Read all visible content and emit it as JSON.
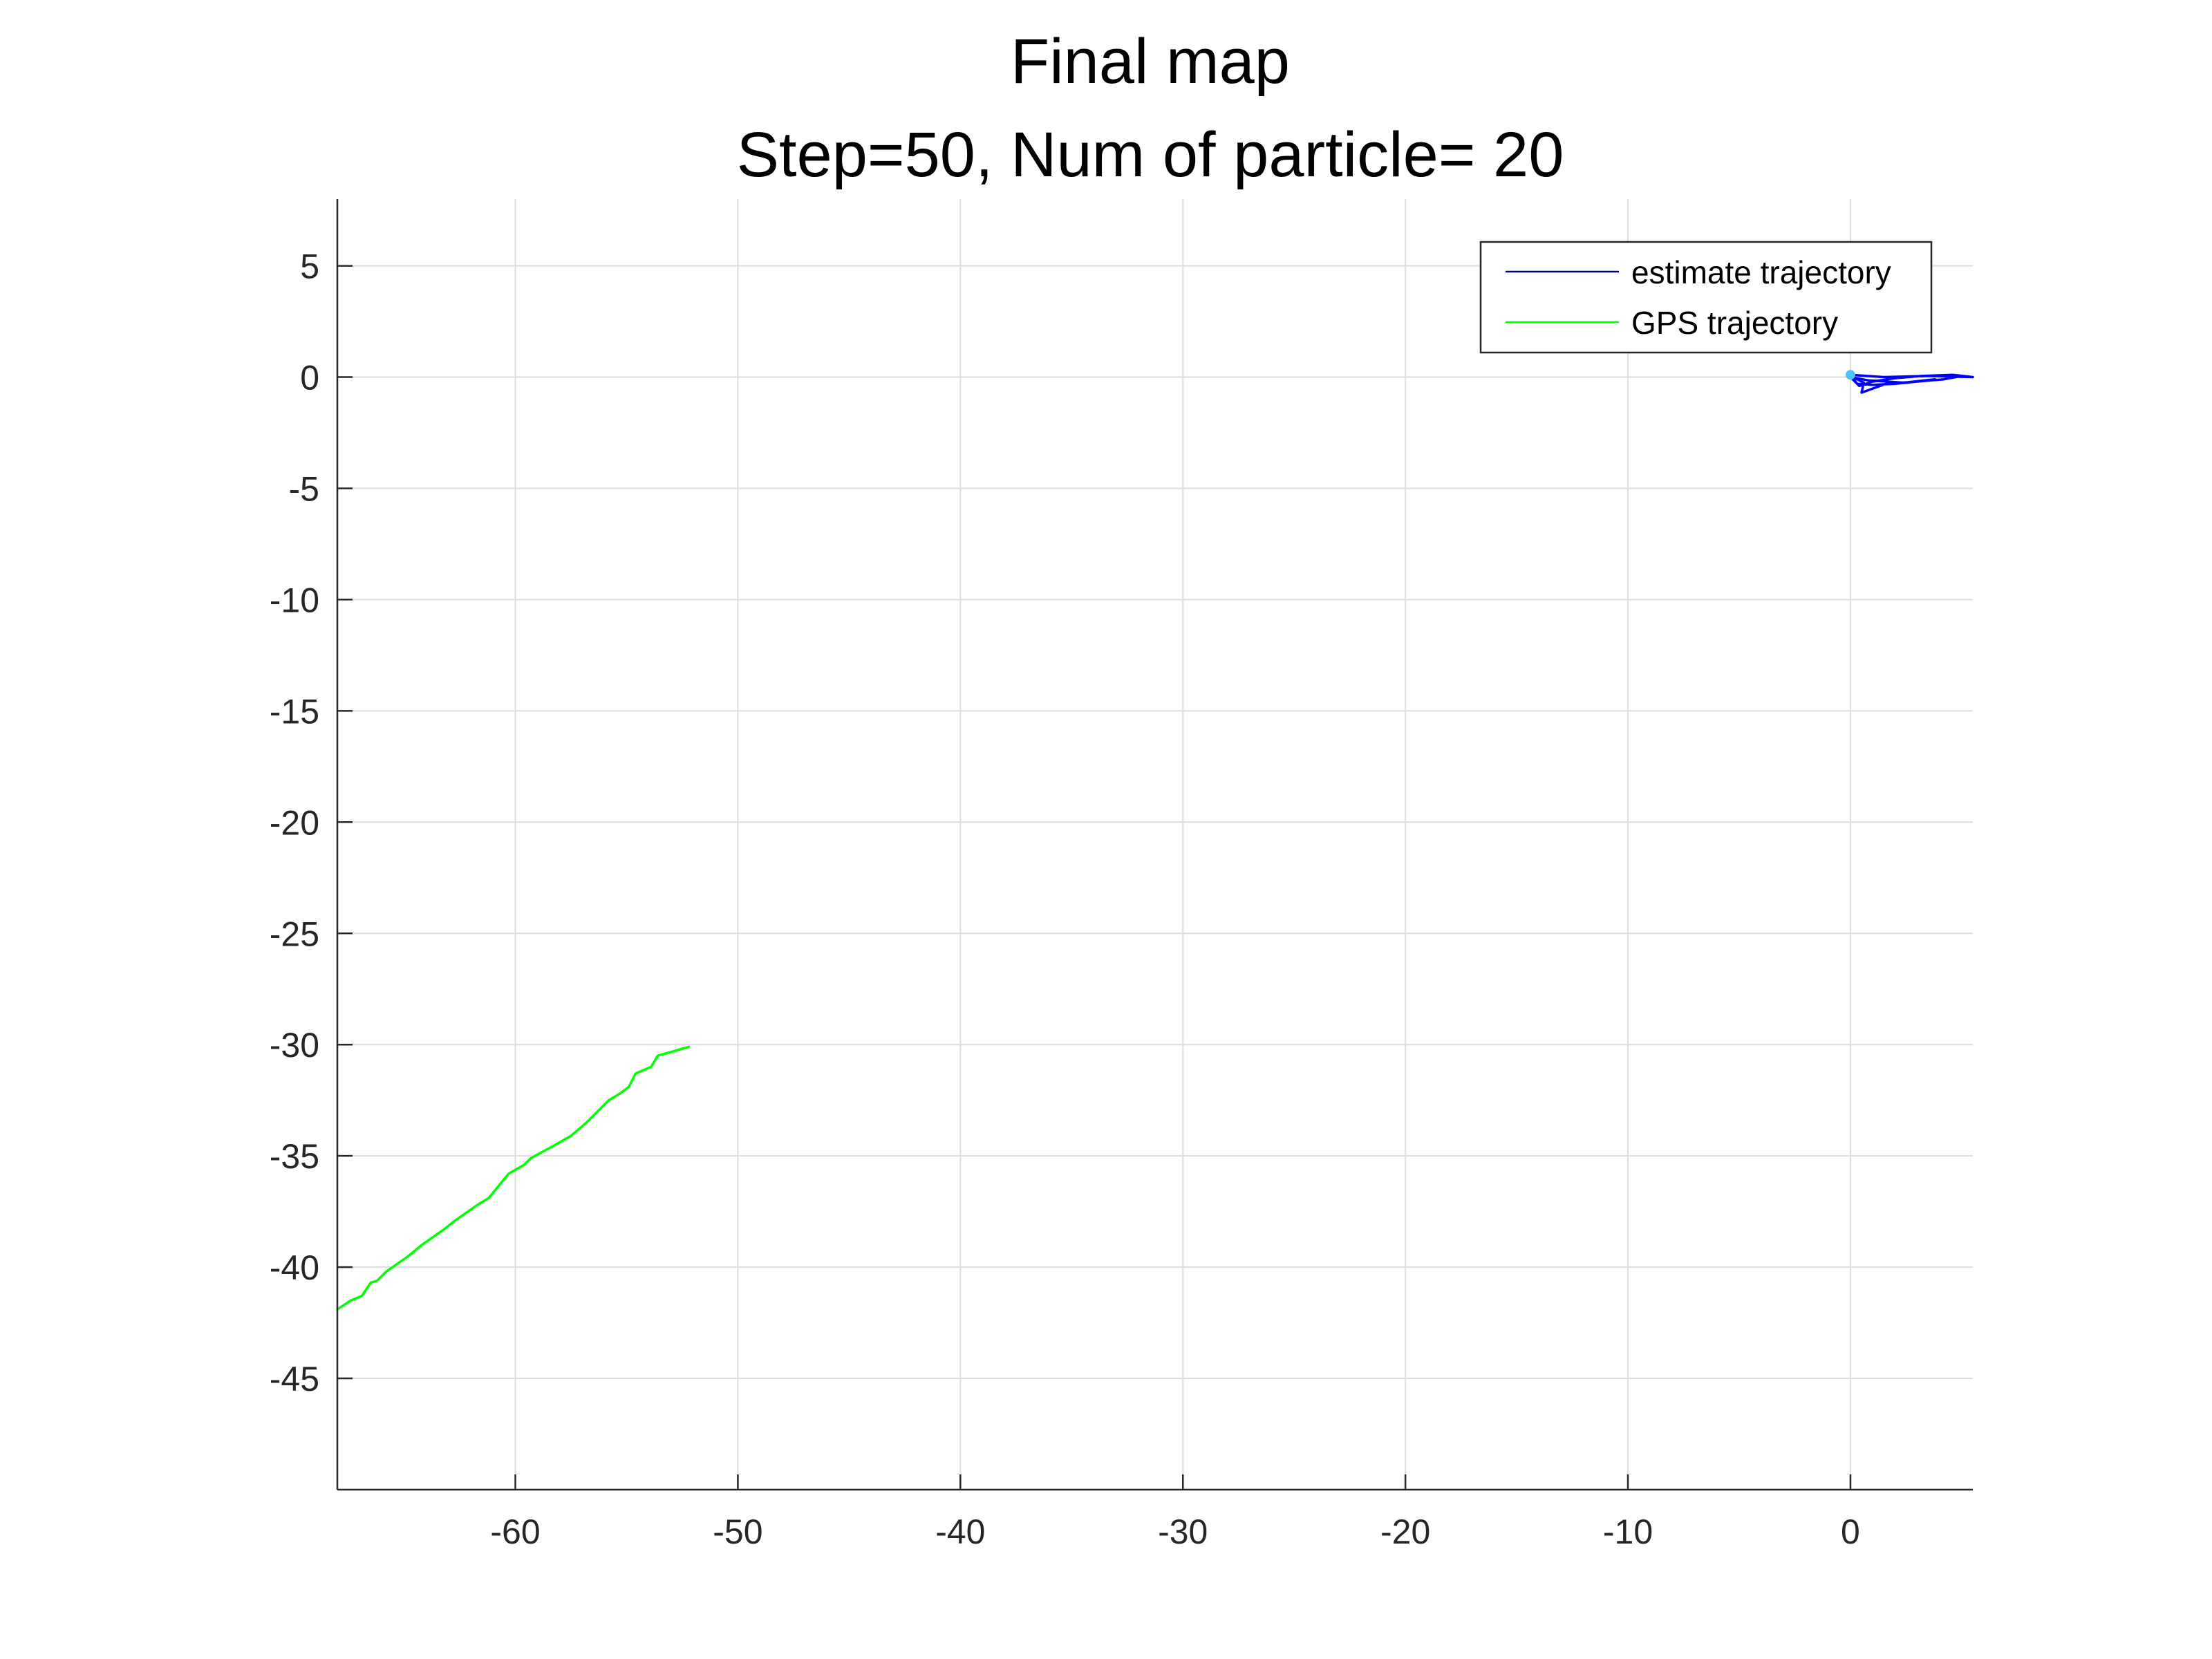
{
  "chart_data": {
    "type": "line",
    "title": "Final map",
    "subtitle": "Step=50, Num of particle= 20",
    "xlabel": "",
    "ylabel": "",
    "xlim": [
      -68,
      5.5
    ],
    "ylim": [
      -50,
      8
    ],
    "xticks": [
      -60,
      -50,
      -40,
      -30,
      -20,
      -10,
      0
    ],
    "yticks": [
      5,
      0,
      -5,
      -10,
      -15,
      -20,
      -25,
      -30,
      -35,
      -40,
      -45
    ],
    "xtick_labels": [
      "-60",
      "-50",
      "-40",
      "-30",
      "-20",
      "-10",
      "0"
    ],
    "ytick_labels": [
      "5",
      "0",
      "-5",
      "-10",
      "-15",
      "-20",
      "-25",
      "-30",
      "-35",
      "-40",
      "-45"
    ],
    "grid": true,
    "legend_position": "top-right",
    "series": [
      {
        "name": "estimate trajectory",
        "color": "#0000ff",
        "legend_color": "#00007f",
        "x": [
          0,
          0.3,
          1.0,
          2.0,
          3.0,
          4.2,
          5.0,
          5.5,
          4.6,
          3.2,
          2.0,
          1.0,
          0.4,
          0,
          0.8,
          2.4,
          3.8,
          3.0,
          1.6,
          0.5,
          0.6,
          0.3,
          0,
          1.5,
          3.5,
          5.5
        ],
        "y": [
          0.1,
          -0.3,
          -0.35,
          -0.3,
          -0.2,
          -0.1,
          0.05,
          0.0,
          0.1,
          0.05,
          -0.05,
          -0.2,
          -0.4,
          0.0,
          -0.15,
          -0.25,
          -0.1,
          -0.2,
          -0.3,
          -0.7,
          -0.25,
          -0.1,
          0.1,
          0.0,
          0.05,
          0.0
        ]
      },
      {
        "name": "GPS trajectory",
        "color": "#00ff00",
        "legend_color": "#00ff00",
        "x": [
          -52.2,
          -53.6,
          -53.9,
          -54.6,
          -54.9,
          -55.3,
          -55.8,
          -56.8,
          -57.5,
          -58.2,
          -59.3,
          -59.6,
          -60.3,
          -61.2,
          -61.7,
          -62.7,
          -63.2,
          -64.2,
          -64.8,
          -65.8,
          -66.2,
          -66.5,
          -66.9,
          -67.4,
          -68.0
        ],
        "y": [
          -30.1,
          -30.5,
          -31.0,
          -31.3,
          -31.9,
          -32.2,
          -32.5,
          -33.5,
          -34.1,
          -34.5,
          -35.1,
          -35.4,
          -35.8,
          -36.9,
          -37.2,
          -37.9,
          -38.3,
          -39.0,
          -39.5,
          -40.2,
          -40.6,
          -40.7,
          -41.3,
          -41.5,
          -41.9
        ]
      }
    ]
  }
}
